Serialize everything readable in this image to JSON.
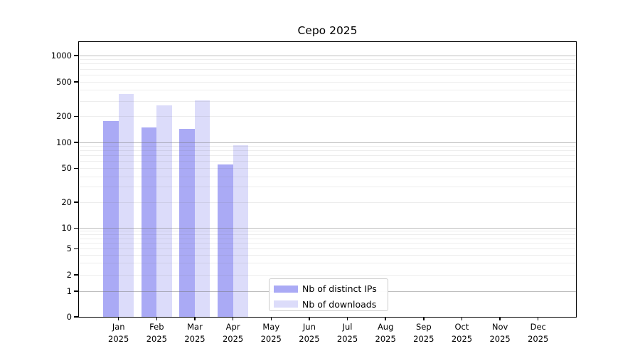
{
  "chart_data": {
    "type": "bar",
    "title": "Cepo 2025",
    "categories": [
      "Jan",
      "Feb",
      "Mar",
      "Apr",
      "May",
      "Jun",
      "Jul",
      "Aug",
      "Sep",
      "Oct",
      "Nov",
      "Dec"
    ],
    "year_label": "2025",
    "series": [
      {
        "name": "Nb of distinct IPs",
        "color": "#aaaaf5",
        "values": [
          176,
          149,
          144,
          55,
          0,
          0,
          0,
          0,
          0,
          0,
          0,
          0
        ]
      },
      {
        "name": "Nb of downloads",
        "color": "#dcdcfa",
        "values": [
          366,
          268,
          306,
          93,
          0,
          0,
          0,
          0,
          0,
          0,
          0,
          0
        ]
      }
    ],
    "ylabel": "",
    "xlabel": "",
    "yscale": "log-to-zero",
    "yticks": [
      1000,
      500,
      200,
      100,
      50,
      20,
      10,
      5,
      2,
      1,
      0
    ],
    "ylim": [
      0,
      1450
    ],
    "grid": "horizontal major+minor",
    "legend_position": "bottom-center"
  }
}
